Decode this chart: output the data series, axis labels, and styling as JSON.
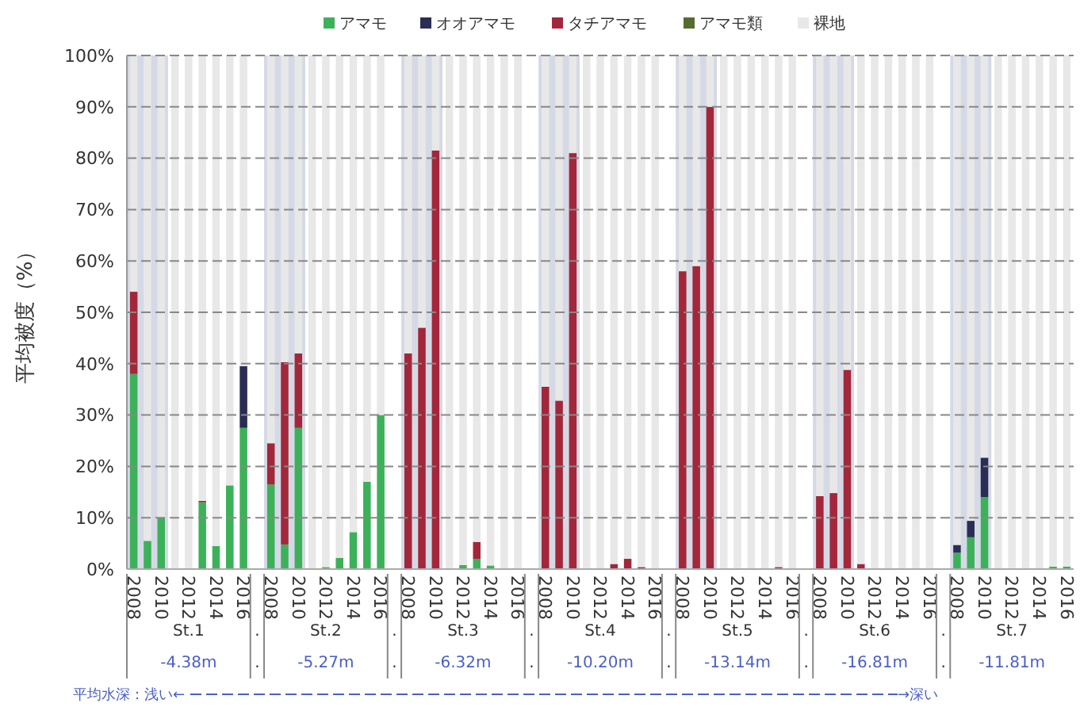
{
  "chart_data": {
    "type": "bar",
    "stacked": true,
    "ylabel": "平均被度（%）",
    "categories": [
      "2008",
      null,
      "2010",
      null,
      "2012",
      null,
      "2014",
      null,
      "2016",
      null,
      "2008",
      null,
      "2010",
      null,
      "2012",
      null,
      "2014",
      null,
      "2016",
      null,
      "2008",
      null,
      "2010",
      null,
      "2012",
      null,
      "2014",
      null,
      "2016",
      null,
      "2008",
      null,
      "2010",
      null,
      "2012",
      null,
      "2014",
      null,
      "2016",
      null,
      "2008",
      null,
      "2010",
      null,
      "2012",
      null,
      "2014",
      null,
      "2016",
      null,
      "2008",
      null,
      "2010",
      null,
      "2012",
      null,
      "2014",
      null,
      "2016",
      null,
      "2008",
      null,
      "2010",
      null,
      "2012",
      null,
      "2014",
      null,
      "2016"
    ],
    "series": [
      {
        "name": "アマモ",
        "color": "#3cb15a",
        "values": [
          38,
          5.5,
          10,
          0,
          0,
          13,
          4.5,
          16.3,
          27.5,
          null,
          16.5,
          4.8,
          27.5,
          0,
          0.4,
          2.2,
          7.2,
          17,
          30,
          null,
          0,
          0,
          0,
          0,
          0.8,
          2,
          0.7,
          0,
          0,
          null,
          0,
          0,
          0,
          0,
          0,
          0,
          0,
          0,
          0,
          null,
          0,
          0,
          0,
          0,
          0,
          0,
          0,
          0,
          0,
          null,
          0,
          0,
          0,
          0,
          0,
          0,
          0,
          0,
          0,
          null,
          3.2,
          6.2,
          14,
          0,
          0,
          0,
          0,
          0.5,
          0.5
        ]
      },
      {
        "name": "オオアマモ",
        "color": "#2b2d55",
        "values": [
          0,
          0,
          0,
          0,
          0,
          0,
          0,
          0,
          12,
          null,
          0,
          0,
          0,
          0,
          0,
          0,
          0,
          0,
          0,
          null,
          0,
          0,
          0,
          0,
          0,
          0,
          0,
          0,
          0,
          null,
          0,
          0,
          0,
          0,
          0,
          0,
          0,
          0,
          0,
          null,
          0,
          0,
          0,
          0,
          0,
          0,
          0,
          0,
          0,
          null,
          0,
          0,
          0,
          0,
          0,
          0,
          0,
          0,
          0,
          null,
          1.5,
          3.2,
          7.7,
          0,
          0,
          0,
          0,
          0,
          0
        ]
      },
      {
        "name": "タチアマモ",
        "color": "#a3273a",
        "values": [
          16,
          0,
          0,
          0,
          0,
          0.3,
          0,
          0,
          0,
          null,
          8,
          35.5,
          14.5,
          0,
          0,
          0,
          0,
          0,
          0,
          null,
          42,
          47,
          81.5,
          0,
          0,
          3.3,
          0,
          0,
          0,
          null,
          35.5,
          32.8,
          81,
          0,
          0,
          1,
          2,
          0.4,
          0,
          null,
          58,
          59,
          90,
          0,
          0,
          0,
          0,
          0.4,
          0,
          null,
          14.2,
          14.8,
          38.8,
          1,
          0,
          0,
          0,
          0,
          0,
          null,
          0,
          0,
          0,
          0,
          0,
          0,
          0,
          0,
          0
        ]
      },
      {
        "name": "アマモ類",
        "color": "#556b2f",
        "values": [
          0,
          0,
          0,
          0,
          0,
          0,
          0,
          0,
          0,
          null,
          0,
          0,
          0,
          0,
          0,
          0,
          0,
          0,
          0,
          null,
          0,
          0,
          0,
          0,
          0,
          0,
          0,
          0,
          0,
          null,
          0,
          0,
          0,
          0,
          0,
          0,
          0,
          0,
          0,
          null,
          0,
          0,
          0,
          0,
          0,
          0,
          0,
          0,
          0,
          null,
          0,
          0,
          0,
          0,
          0,
          0,
          0,
          0,
          0,
          null,
          0,
          0,
          0,
          0,
          0,
          0,
          0,
          0,
          0
        ]
      },
      {
        "name": "裸地",
        "color": "#e8e8e8",
        "values": [
          46,
          94.5,
          90,
          100,
          100,
          86.7,
          95.5,
          83.7,
          60.5,
          null,
          75.5,
          59.7,
          58,
          100,
          99.6,
          97.8,
          92.8,
          83,
          70,
          null,
          58,
          53,
          18.5,
          100,
          99.2,
          94.7,
          99.3,
          100,
          100,
          null,
          64.5,
          67.2,
          19,
          100,
          100,
          99,
          98,
          99.6,
          100,
          null,
          42,
          41,
          10,
          100,
          100,
          100,
          100,
          99.6,
          100,
          null,
          85.8,
          85.2,
          61.2,
          99,
          100,
          100,
          100,
          100,
          100,
          null,
          95.3,
          90.6,
          78.3,
          100,
          100,
          100,
          100,
          99.5,
          99.5
        ]
      }
    ],
    "ylim": [
      0,
      100
    ],
    "yticks": [
      {
        "value": 0,
        "label": "0%"
      },
      {
        "value": 10,
        "label": "10%"
      },
      {
        "value": 20,
        "label": "20%"
      },
      {
        "value": 30,
        "label": "30%"
      },
      {
        "value": 40,
        "label": "40%"
      },
      {
        "value": 50,
        "label": "50%"
      },
      {
        "value": 60,
        "label": "60%"
      },
      {
        "value": 70,
        "label": "70%"
      },
      {
        "value": 80,
        "label": "80%"
      },
      {
        "value": 90,
        "label": "90%"
      },
      {
        "value": 100,
        "label": "100%"
      }
    ],
    "grid": "y",
    "legend": "top",
    "annotations": [
      "St.1",
      "-4.38m",
      "St.2",
      "-5.27m",
      "St.3",
      "-6.32m",
      "St.4",
      "-10.20m",
      "St.5",
      "-13.14m",
      "St.6",
      "-16.81m",
      "St.7",
      "-11.81m",
      ".",
      ".",
      ".",
      ".",
      ".",
      ".",
      ".",
      ".",
      ".",
      ".",
      ".",
      ".",
      "平均水深：浅い←",
      "→深い"
    ]
  }
}
